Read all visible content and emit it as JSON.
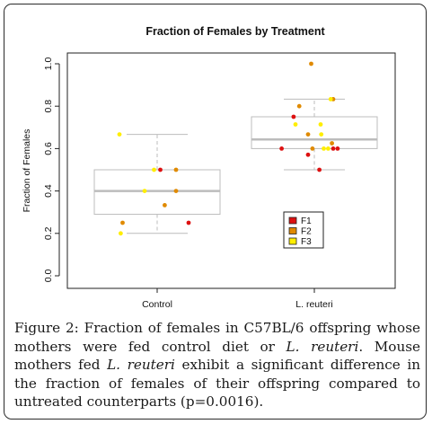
{
  "chart_data": {
    "type": "boxplot",
    "title": "Fraction of Females by Treatment",
    "xlabel": "",
    "ylabel": "Fraction of Females",
    "ylim": [
      0,
      1
    ],
    "yticks": [
      "0.0",
      "0.2",
      "0.4",
      "0.6",
      "0.8",
      "1.0"
    ],
    "categories": [
      "Control",
      "L. reuteri"
    ],
    "boxes": [
      {
        "category": "Control",
        "whisker_low": 0.2,
        "q1": 0.29,
        "median": 0.4,
        "q3": 0.5,
        "whisker_high": 0.667
      },
      {
        "category": "L. reuteri",
        "whisker_low": 0.5,
        "q1": 0.6,
        "median": 0.643,
        "q3": 0.75,
        "whisker_high": 0.833
      }
    ],
    "legend": {
      "position": "right-center",
      "entries": [
        {
          "name": "F1",
          "color": "#dd1111"
        },
        {
          "name": "F2",
          "color": "#e08a00"
        },
        {
          "name": "F3",
          "color": "#ffee00"
        }
      ]
    },
    "points": [
      {
        "category": "Control",
        "series": "F3",
        "y": 0.667,
        "jitter": -0.6
      },
      {
        "category": "Control",
        "series": "F3",
        "y": 0.5,
        "jitter": -0.05
      },
      {
        "category": "Control",
        "series": "F1",
        "y": 0.5,
        "jitter": 0.05
      },
      {
        "category": "Control",
        "series": "F2",
        "y": 0.5,
        "jitter": 0.3
      },
      {
        "category": "Control",
        "series": "F2",
        "y": 0.4,
        "jitter": 0.3
      },
      {
        "category": "Control",
        "series": "F3",
        "y": 0.4,
        "jitter": -0.2
      },
      {
        "category": "Control",
        "series": "F2",
        "y": 0.333,
        "jitter": 0.12
      },
      {
        "category": "Control",
        "series": "F2",
        "y": 0.25,
        "jitter": -0.55
      },
      {
        "category": "Control",
        "series": "F1",
        "y": 0.25,
        "jitter": 0.5
      },
      {
        "category": "Control",
        "series": "F3",
        "y": 0.2,
        "jitter": -0.58
      },
      {
        "category": "L. reuteri",
        "series": "F2",
        "y": 1.0,
        "jitter": -0.05
      },
      {
        "category": "L. reuteri",
        "series": "F2",
        "y": 0.833,
        "jitter": 0.3
      },
      {
        "category": "L. reuteri",
        "series": "F3",
        "y": 0.833,
        "jitter": 0.26
      },
      {
        "category": "L. reuteri",
        "series": "F2",
        "y": 0.8,
        "jitter": -0.24
      },
      {
        "category": "L. reuteri",
        "series": "F1",
        "y": 0.75,
        "jitter": -0.33
      },
      {
        "category": "L. reuteri",
        "series": "F3",
        "y": 0.714,
        "jitter": 0.1
      },
      {
        "category": "L. reuteri",
        "series": "F3",
        "y": 0.714,
        "jitter": -0.3
      },
      {
        "category": "L. reuteri",
        "series": "F2",
        "y": 0.667,
        "jitter": -0.1
      },
      {
        "category": "L. reuteri",
        "series": "F3",
        "y": 0.667,
        "jitter": 0.11
      },
      {
        "category": "L. reuteri",
        "series": "F2",
        "y": 0.625,
        "jitter": 0.28
      },
      {
        "category": "L. reuteri",
        "series": "F1",
        "y": 0.6,
        "jitter": -0.52
      },
      {
        "category": "L. reuteri",
        "series": "F2",
        "y": 0.6,
        "jitter": -0.03
      },
      {
        "category": "L. reuteri",
        "series": "F3",
        "y": 0.6,
        "jitter": 0.15
      },
      {
        "category": "L. reuteri",
        "series": "F3",
        "y": 0.6,
        "jitter": 0.22
      },
      {
        "category": "L. reuteri",
        "series": "F1",
        "y": 0.6,
        "jitter": 0.3
      },
      {
        "category": "L. reuteri",
        "series": "F1",
        "y": 0.6,
        "jitter": 0.37
      },
      {
        "category": "L. reuteri",
        "series": "F1",
        "y": 0.571,
        "jitter": -0.1
      },
      {
        "category": "L. reuteri",
        "series": "F1",
        "y": 0.5,
        "jitter": 0.08
      }
    ]
  },
  "caption": {
    "label": "Figure 2:",
    "part1": " Fraction of females in C57BL/6 offspring whose mothers were fed control diet or ",
    "italic1": "L. reuteri",
    "part2": ". Mouse mothers fed ",
    "italic2": "L. reuteri",
    "part3": " exhibit a significant difference in the fraction of females of their offspring compared to untreated counterparts (p=0.0016)."
  }
}
